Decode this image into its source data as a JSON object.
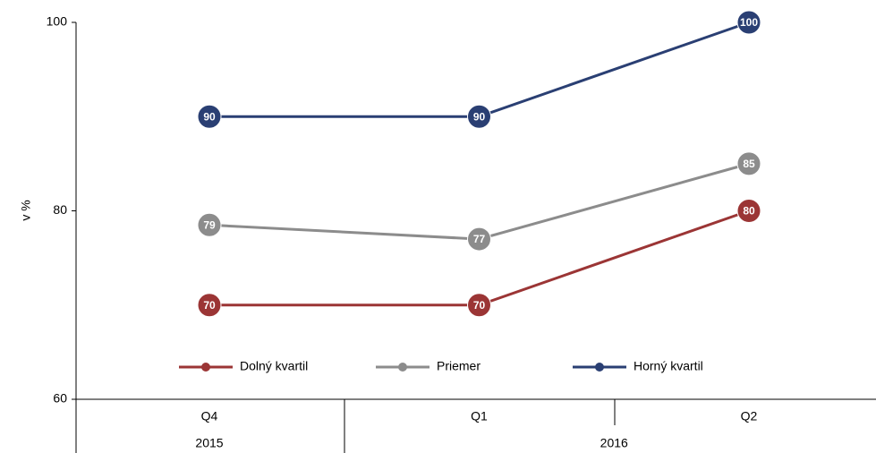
{
  "chart_data": {
    "type": "line",
    "y_label": "v %",
    "categories": [
      "Q4",
      "Q1",
      "Q2"
    ],
    "groups": [
      {
        "label": "2015",
        "span": 1
      },
      {
        "label": "2016",
        "span": 2
      }
    ],
    "ylim": [
      60,
      100
    ],
    "yticks": [
      60,
      80,
      100
    ],
    "legend": "bottom",
    "series": [
      {
        "name": "Dolný kvartil",
        "color": "#9b3535",
        "values": [
          70,
          70,
          80
        ]
      },
      {
        "name": "Priemer",
        "color": "#8c8c8c",
        "values": [
          78.5,
          77,
          85
        ],
        "value_labels": [
          "79",
          "77",
          "85"
        ]
      },
      {
        "name": "Horný kvartil",
        "color": "#2a3f73",
        "values": [
          90,
          90,
          100
        ]
      }
    ]
  }
}
